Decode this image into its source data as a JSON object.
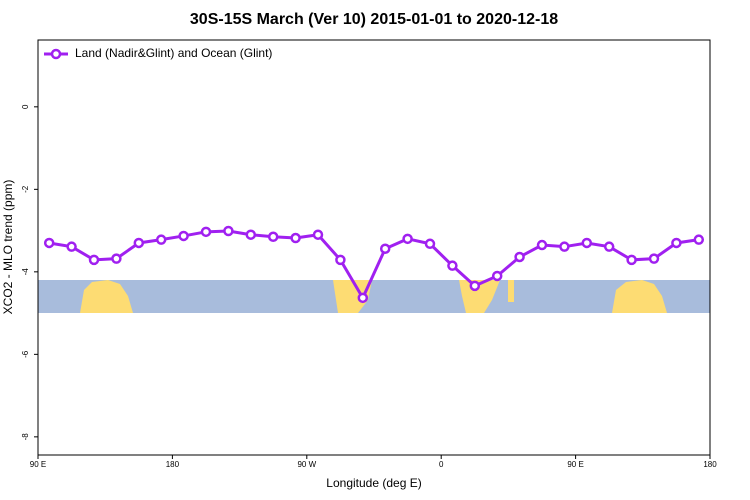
{
  "chart_data": {
    "type": "line",
    "title": "30S-15S March (Ver 10)   2015-01-01 to 2020-12-18",
    "x_label": "Longitude (deg E)",
    "y_label": "XCO2 - MLO trend (ppm)",
    "x": [
      97.5,
      112.5,
      127.5,
      142.5,
      157.5,
      172.5,
      187.5,
      202.5,
      217.5,
      232.5,
      247.5,
      262.5,
      277.5,
      292.5,
      307.5,
      322.5,
      337.5,
      352.5,
      367.5,
      382.5,
      397.5,
      412.5,
      427.5,
      442.5,
      457.5,
      472.5,
      487.5,
      502.5,
      517.5,
      532.5
    ],
    "series": [
      {
        "name": "Land (Nadir&Glint) and Ocean (Glint)",
        "color": "#a020f0",
        "values": [
          -3.3,
          -3.39,
          -3.71,
          -3.68,
          -3.3,
          -3.22,
          -3.13,
          -3.03,
          -3.01,
          -3.1,
          -3.15,
          -3.18,
          -3.1,
          -3.71,
          -4.63,
          -3.44,
          -3.2,
          -3.32,
          -3.85,
          -4.34,
          -4.1,
          -3.64,
          -3.35,
          -3.39,
          -3.3,
          -3.39,
          -3.71,
          -3.68,
          -3.3,
          -3.22
        ]
      }
    ],
    "xlim": [
      90,
      540
    ],
    "xticks": [
      {
        "value": 90,
        "label": "90 E"
      },
      180,
      {
        "value": 270,
        "label": "90 W"
      },
      {
        "value": 360,
        "label": "0"
      },
      {
        "value": 450,
        "label": "90 E"
      },
      {
        "value": 540,
        "label": "180"
      }
    ],
    "ylim": [
      -8.44,
      1.62
    ],
    "yticks": [
      0,
      -2,
      -4,
      -6,
      -8
    ],
    "legend": "top-left"
  }
}
